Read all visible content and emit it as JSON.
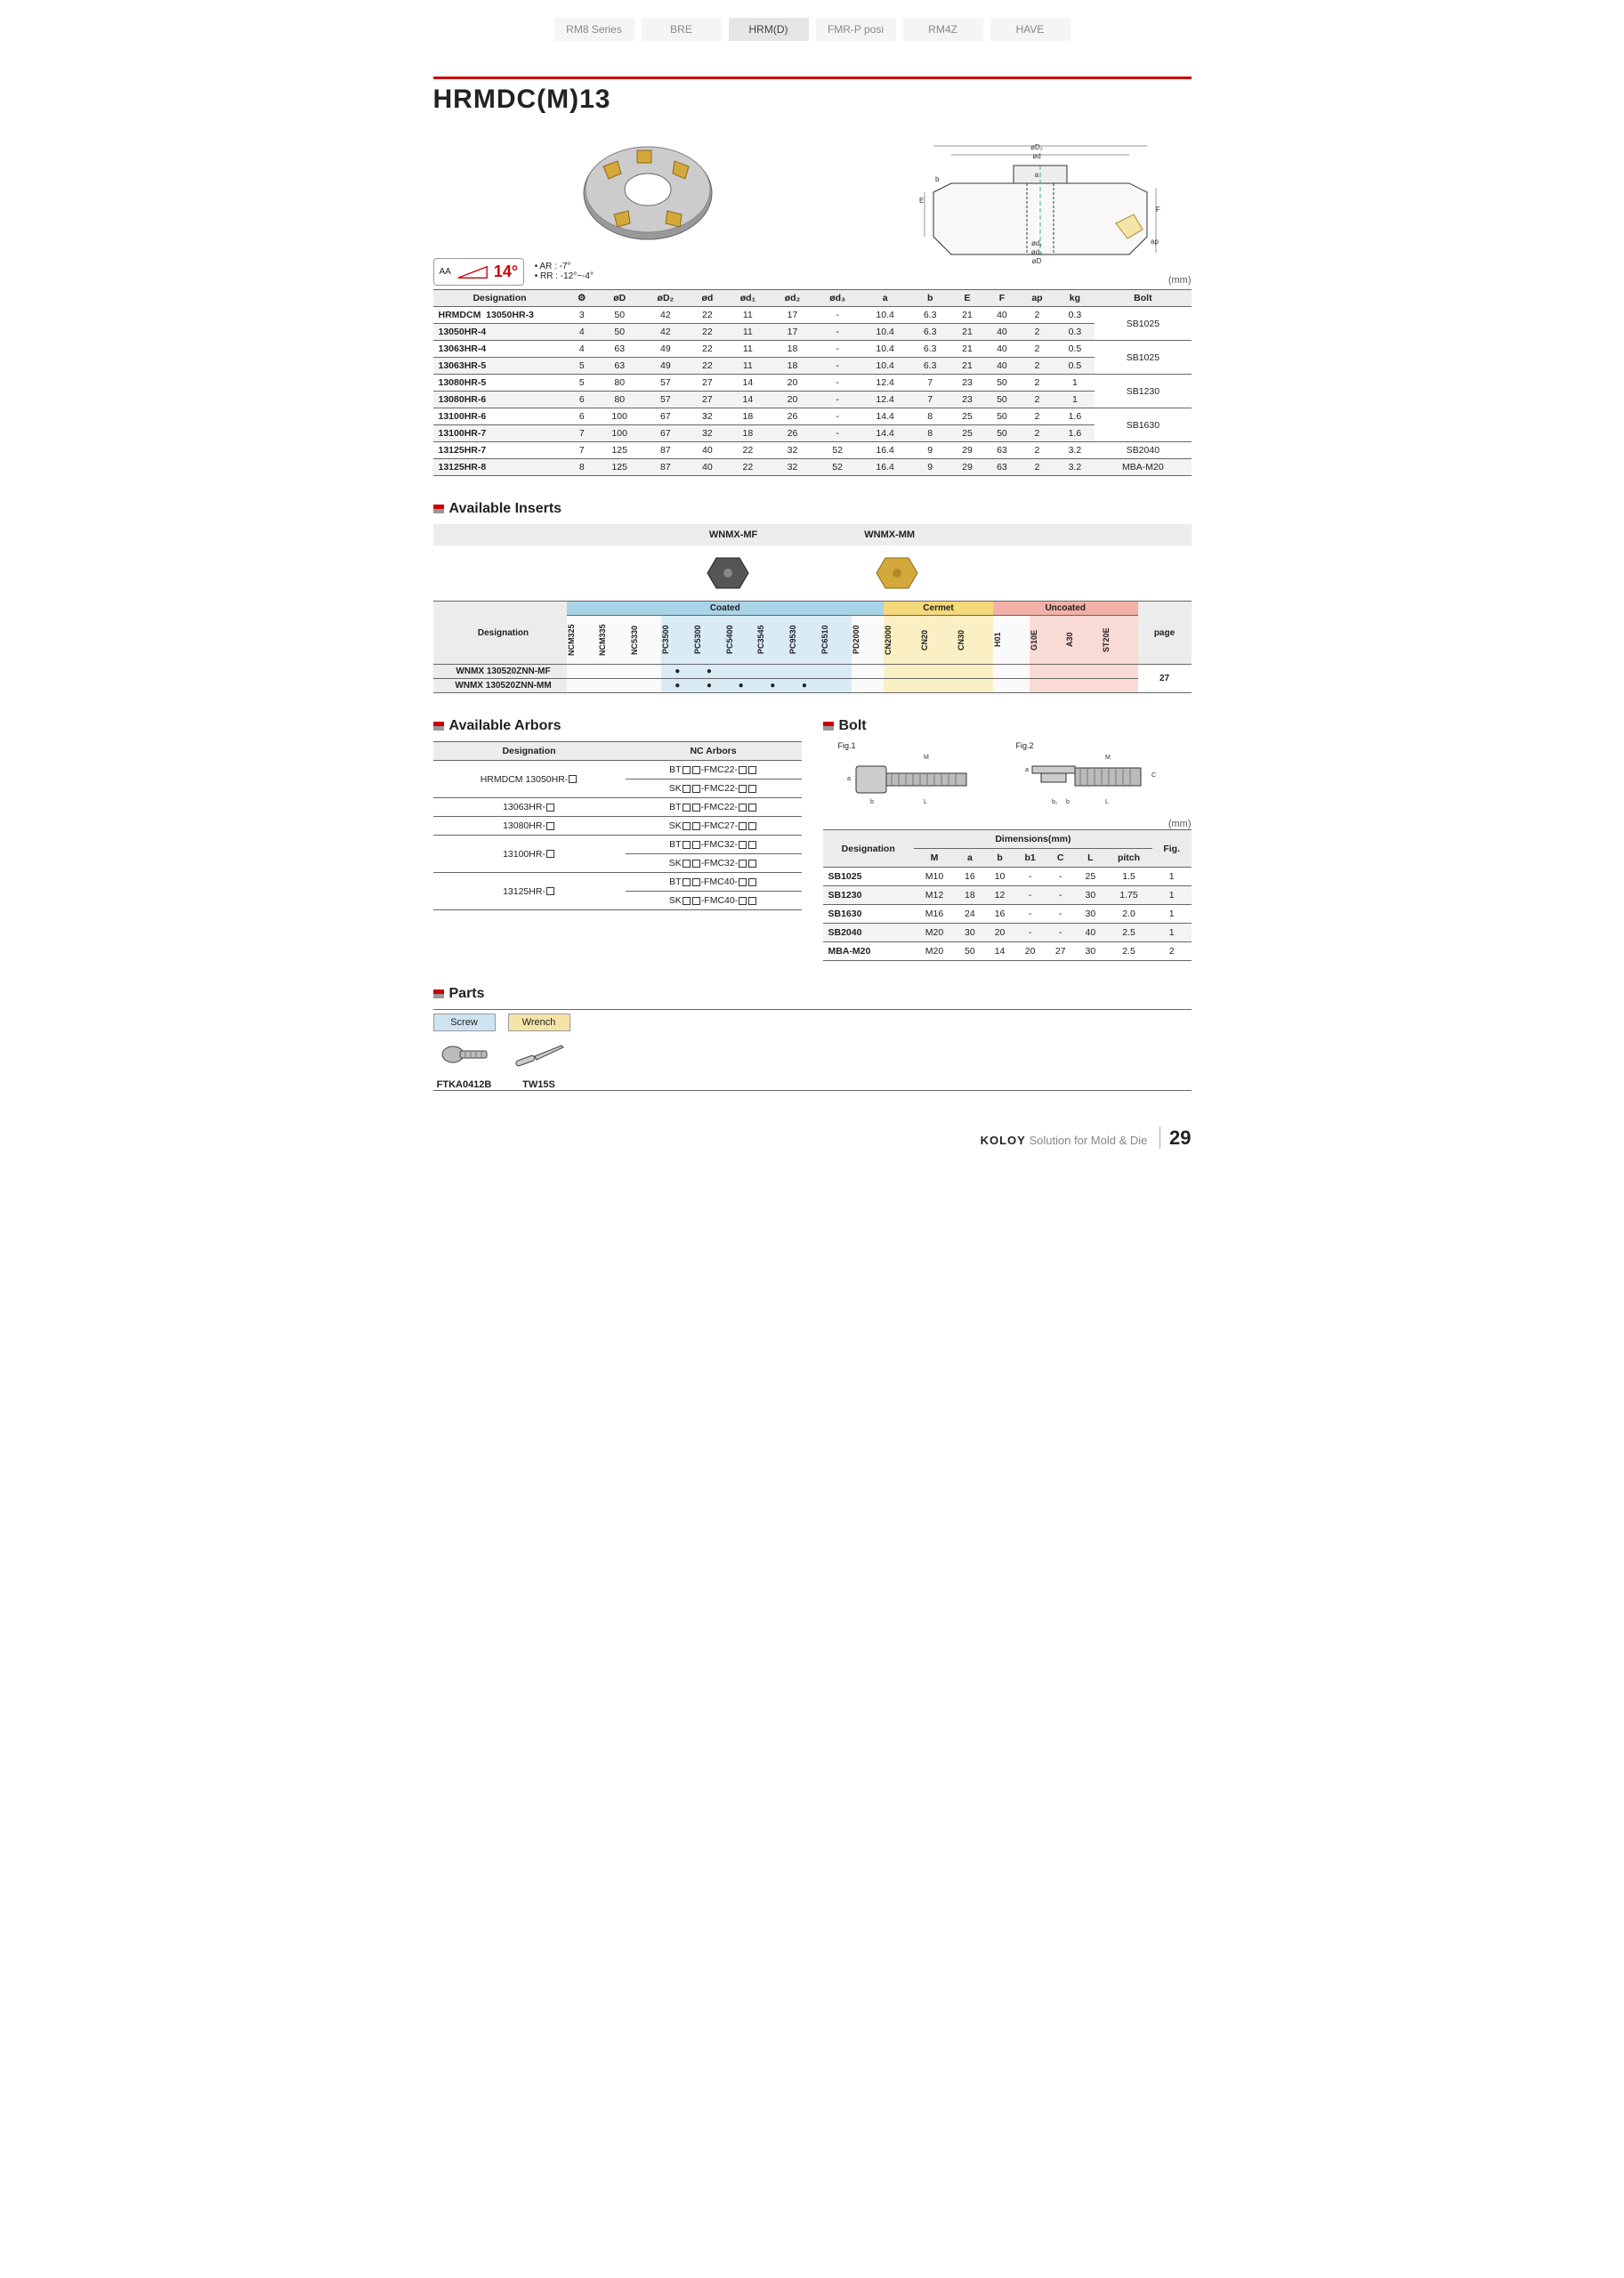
{
  "tabs": [
    "RM8 Series",
    "BRE",
    "HRM(D)",
    "FMR-P posi",
    "RM4Z",
    "HAVE"
  ],
  "active_tab": 2,
  "title": "HRMDC(M)13",
  "angle": {
    "label": "AA",
    "value": "14°",
    "ar": "• AR : -7°",
    "rr": "• RR : -12°~-4°"
  },
  "unit": "(mm)",
  "spec": {
    "headers": [
      "Designation",
      "⚙",
      "øD",
      "øD₂",
      "ød",
      "ød₁",
      "ød₂",
      "ød₃",
      "a",
      "b",
      "E",
      "F",
      "ap",
      "kg",
      "Bolt"
    ],
    "family": "HRMDCM",
    "rows": [
      {
        "d": "13050HR-3",
        "v": [
          "3",
          "50",
          "42",
          "22",
          "11",
          "17",
          "-",
          "10.4",
          "6.3",
          "21",
          "40",
          "2",
          "0.3"
        ],
        "bolt": "SB1025",
        "bs": 2
      },
      {
        "d": "13050HR-4",
        "v": [
          "4",
          "50",
          "42",
          "22",
          "11",
          "17",
          "-",
          "10.4",
          "6.3",
          "21",
          "40",
          "2",
          "0.3"
        ],
        "shade": true
      },
      {
        "d": "13063HR-4",
        "v": [
          "4",
          "63",
          "49",
          "22",
          "11",
          "18",
          "-",
          "10.4",
          "6.3",
          "21",
          "40",
          "2",
          "0.5"
        ],
        "bolt": "SB1025",
        "bs": 2
      },
      {
        "d": "13063HR-5",
        "v": [
          "5",
          "63",
          "49",
          "22",
          "11",
          "18",
          "-",
          "10.4",
          "6.3",
          "21",
          "40",
          "2",
          "0.5"
        ],
        "shade": true
      },
      {
        "d": "13080HR-5",
        "v": [
          "5",
          "80",
          "57",
          "27",
          "14",
          "20",
          "-",
          "12.4",
          "7",
          "23",
          "50",
          "2",
          "1"
        ],
        "bolt": "SB1230",
        "bs": 2
      },
      {
        "d": "13080HR-6",
        "v": [
          "6",
          "80",
          "57",
          "27",
          "14",
          "20",
          "-",
          "12.4",
          "7",
          "23",
          "50",
          "2",
          "1"
        ],
        "shade": true
      },
      {
        "d": "13100HR-6",
        "v": [
          "6",
          "100",
          "67",
          "32",
          "18",
          "26",
          "-",
          "14.4",
          "8",
          "25",
          "50",
          "2",
          "1.6"
        ],
        "bolt": "SB1630",
        "bs": 2
      },
      {
        "d": "13100HR-7",
        "v": [
          "7",
          "100",
          "67",
          "32",
          "18",
          "26",
          "-",
          "14.4",
          "8",
          "25",
          "50",
          "2",
          "1.6"
        ],
        "shade": true
      },
      {
        "d": "13125HR-7",
        "v": [
          "7",
          "125",
          "87",
          "40",
          "22",
          "32",
          "52",
          "16.4",
          "9",
          "29",
          "63",
          "2",
          "3.2"
        ],
        "bolt": "SB2040",
        "bs": 1
      },
      {
        "d": "13125HR-8",
        "v": [
          "8",
          "125",
          "87",
          "40",
          "22",
          "32",
          "52",
          "16.4",
          "9",
          "29",
          "63",
          "2",
          "3.2"
        ],
        "bolt": "MBA-M20",
        "bs": 1,
        "shade": true
      }
    ]
  },
  "inserts": {
    "title": "Available Inserts",
    "variants": [
      "WNMX-MF",
      "WNMX-MM"
    ],
    "categories": [
      {
        "label": "Coated",
        "span": 10,
        "cls": "cat-coated"
      },
      {
        "label": "Cermet",
        "span": 3,
        "cls": "cat-cermet"
      },
      {
        "label": "Uncoated",
        "span": 4,
        "cls": "cat-uncoated"
      }
    ],
    "grades": [
      {
        "n": "NCM325",
        "cls": "grade-plain"
      },
      {
        "n": "NCM335",
        "cls": "grade-plain"
      },
      {
        "n": "NC5330",
        "cls": "grade-plain"
      },
      {
        "n": "PC3500",
        "cls": "grade-blue"
      },
      {
        "n": "PC5300",
        "cls": "grade-blue"
      },
      {
        "n": "PC5400",
        "cls": "grade-blue"
      },
      {
        "n": "PC3545",
        "cls": "grade-blue"
      },
      {
        "n": "PC9530",
        "cls": "grade-blue"
      },
      {
        "n": "PC6510",
        "cls": "grade-blue"
      },
      {
        "n": "PD2000",
        "cls": "grade-plain"
      },
      {
        "n": "CN2000",
        "cls": "grade-yellow"
      },
      {
        "n": "CN20",
        "cls": "grade-yellow"
      },
      {
        "n": "CN30",
        "cls": "grade-yellow"
      },
      {
        "n": "H01",
        "cls": "grade-plain"
      },
      {
        "n": "G10E",
        "cls": "grade-pink"
      },
      {
        "n": "A30",
        "cls": "grade-pink"
      },
      {
        "n": "ST20E",
        "cls": "grade-pink"
      }
    ],
    "page_label": "page",
    "rows": [
      {
        "d": "WNMX 130520ZNN-MF",
        "dots": [
          0,
          0,
          0,
          1,
          1,
          0,
          0,
          0,
          0,
          0,
          0,
          0,
          0,
          0,
          0,
          0,
          0
        ]
      },
      {
        "d": "WNMX 130520ZNN-MM",
        "dots": [
          0,
          0,
          0,
          1,
          1,
          1,
          1,
          1,
          0,
          0,
          0,
          0,
          0,
          0,
          0,
          0,
          0
        ]
      }
    ],
    "page": "27"
  },
  "arbors": {
    "title": "Available Arbors",
    "headers": [
      "Designation",
      "NC Arbors"
    ],
    "rows": [
      {
        "d": "HRMDCM  13050HR-□",
        "a": [
          "BT□□-FMC22-□□",
          "SK□□-FMC22-□□"
        ]
      },
      {
        "d": "13063HR-□",
        "a": [
          "BT□□-FMC22-□□"
        ]
      },
      {
        "d": "13080HR-□",
        "a": [
          "SK□□-FMC27-□□"
        ]
      },
      {
        "d": "13100HR-□",
        "a": [
          "BT□□-FMC32-□□",
          "SK□□-FMC32-□□"
        ]
      },
      {
        "d": "13125HR-□",
        "a": [
          "BT□□-FMC40-□□",
          "SK□□-FMC40-□□"
        ]
      }
    ]
  },
  "bolt": {
    "title": "Bolt",
    "fig1": "Fig.1",
    "fig2": "Fig.2",
    "unit": "(mm)",
    "headers": [
      "Designation",
      "M",
      "a",
      "b",
      "b1",
      "C",
      "L",
      "pitch",
      "Fig."
    ],
    "dim_label": "Dimensions(mm)",
    "rows": [
      {
        "d": "SB1025",
        "v": [
          "M10",
          "16",
          "10",
          "-",
          "-",
          "25",
          "1.5",
          "1"
        ]
      },
      {
        "d": "SB1230",
        "v": [
          "M12",
          "18",
          "12",
          "-",
          "-",
          "30",
          "1.75",
          "1"
        ],
        "shade": true
      },
      {
        "d": "SB1630",
        "v": [
          "M16",
          "24",
          "16",
          "-",
          "-",
          "30",
          "2.0",
          "1"
        ]
      },
      {
        "d": "SB2040",
        "v": [
          "M20",
          "30",
          "20",
          "-",
          "-",
          "40",
          "2.5",
          "1"
        ],
        "shade": true
      },
      {
        "d": "MBA-M20",
        "v": [
          "M20",
          "50",
          "14",
          "20",
          "27",
          "30",
          "2.5",
          "2"
        ]
      }
    ]
  },
  "parts": {
    "title": "Parts",
    "items": [
      {
        "hdr": "Screw",
        "code": "FTKA0412B",
        "cls": "blue"
      },
      {
        "hdr": "Wrench",
        "code": "TW15S",
        "cls": "yellow"
      }
    ]
  },
  "footer": {
    "brand": "KOLOY",
    "desc": "Solution for Mold & Die",
    "page": "29"
  }
}
